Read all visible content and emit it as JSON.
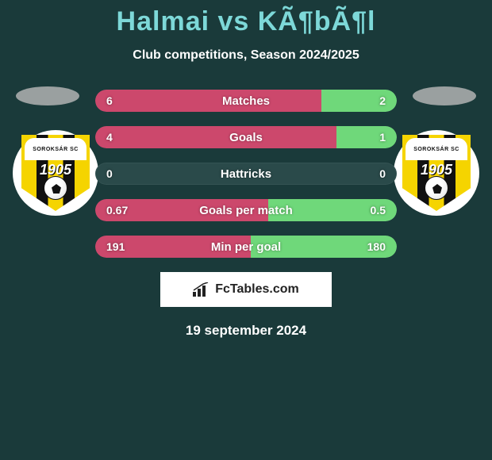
{
  "header": {
    "title": "Halmai vs KÃ¶bÃ¶l",
    "subtitle": "Club competitions, Season 2024/2025"
  },
  "colors": {
    "left_bar": "#cc486c",
    "right_bar": "#6fd87a",
    "neutral_bar": "#2a4a4a",
    "background": "#1a3a3a",
    "title": "#7dd8d8",
    "text": "#ffffff"
  },
  "crest": {
    "top_text": "SOROKSÁR SC",
    "year": "1905"
  },
  "stats": [
    {
      "label": "Matches",
      "left_val": "6",
      "right_val": "2",
      "left_pct": 75,
      "right_pct": 25
    },
    {
      "label": "Goals",
      "left_val": "4",
      "right_val": "1",
      "left_pct": 80,
      "right_pct": 20
    },
    {
      "label": "Hattricks",
      "left_val": "0",
      "right_val": "0",
      "left_pct": 0,
      "right_pct": 0
    },
    {
      "label": "Goals per match",
      "left_val": "0.67",
      "right_val": "0.5",
      "left_pct": 57.3,
      "right_pct": 42.7
    },
    {
      "label": "Min per goal",
      "left_val": "191",
      "right_val": "180",
      "left_pct": 51.5,
      "right_pct": 48.5
    }
  ],
  "logo": {
    "text": "FcTables.com"
  },
  "date": "19 september 2024"
}
